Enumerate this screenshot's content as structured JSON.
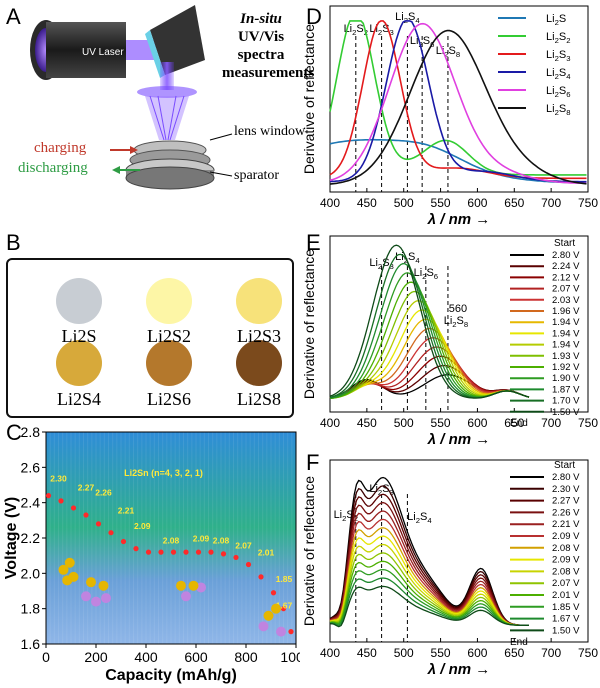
{
  "panels": {
    "a": "A",
    "b": "B",
    "c": "C",
    "d": "D",
    "e": "E",
    "f": "F"
  },
  "panel_a": {
    "laser_label": "UV Laser",
    "title_italic": "In-situ",
    "title_rest": " UV/Vis",
    "title_line2": "spectra",
    "title_line3": "measurements",
    "charging": "charging",
    "discharging": "discharging",
    "lens_window": "lens window",
    "separator": "sparator",
    "colors": {
      "charging": "#c0392b",
      "discharging": "#2e9c44"
    }
  },
  "panel_b": {
    "samples": [
      {
        "label": "Li2S",
        "color": "#c8cdd3"
      },
      {
        "label": "Li2S2",
        "color": "#fdf6a6"
      },
      {
        "label": "Li2S3",
        "color": "#f7e27a"
      },
      {
        "label": "Li2S4",
        "color": "#d7a93a"
      },
      {
        "label": "Li2S6",
        "color": "#b4782c"
      },
      {
        "label": "Li2S8",
        "color": "#7b4a1c"
      }
    ]
  },
  "chart_data": [
    {
      "panel": "C",
      "type": "scatter",
      "xlabel": "Capacity (mAh/g)",
      "ylabel": "Voltage (V)",
      "xlim": [
        0,
        1000
      ],
      "ylim": [
        1.6,
        2.8
      ],
      "xticks": [
        0,
        200,
        400,
        600,
        800,
        1000
      ],
      "yticks": [
        1.6,
        1.8,
        2.0,
        2.2,
        2.4,
        2.6,
        2.8
      ],
      "annotation": "Li2Sn (n=4, 3, 2, 1)",
      "series": [
        {
          "x": [
            10,
            60,
            110,
            160,
            210,
            260,
            310,
            360,
            410,
            460,
            510,
            560,
            610,
            660,
            710,
            760,
            810,
            860,
            910,
            950,
            980
          ],
          "y": [
            2.44,
            2.41,
            2.37,
            2.33,
            2.28,
            2.23,
            2.18,
            2.14,
            2.12,
            2.12,
            2.12,
            2.12,
            2.12,
            2.12,
            2.11,
            2.09,
            2.05,
            1.98,
            1.89,
            1.8,
            1.67
          ]
        }
      ],
      "point_labels": [
        {
          "text": "2.30",
          "x": 50,
          "y": 2.52
        },
        {
          "text": "2.27",
          "x": 160,
          "y": 2.47
        },
        {
          "text": "2.26",
          "x": 230,
          "y": 2.44
        },
        {
          "text": "2.21",
          "x": 320,
          "y": 2.34
        },
        {
          "text": "2.09",
          "x": 385,
          "y": 2.25
        },
        {
          "text": "2.08",
          "x": 500,
          "y": 2.17
        },
        {
          "text": "2.09",
          "x": 620,
          "y": 2.18
        },
        {
          "text": "2.08",
          "x": 700,
          "y": 2.17
        },
        {
          "text": "2.07",
          "x": 790,
          "y": 2.14
        },
        {
          "text": "2.01",
          "x": 880,
          "y": 2.1
        },
        {
          "text": "1.85",
          "x": 960,
          "y": 1.95
        },
        {
          "text": "1.67",
          "x": 1000,
          "y": 1.8
        }
      ]
    },
    {
      "panel": "D",
      "type": "line",
      "xlabel": "λ / nm →",
      "ylabel": "Derivative of reflectance",
      "xlim": [
        400,
        750
      ],
      "xticks": [
        400,
        450,
        500,
        550,
        600,
        650,
        700,
        750
      ],
      "markers": [
        {
          "x": 435,
          "label": "Li2S2"
        },
        {
          "x": 470,
          "label": "Li2S3"
        },
        {
          "x": 505,
          "label": "Li2S4"
        },
        {
          "x": 525,
          "label": "Li2S6"
        },
        {
          "x": 560,
          "label": "Li2S8"
        }
      ],
      "series": [
        {
          "name": "Li2S",
          "color": "#1f78b4",
          "peak": 440,
          "width": 160,
          "amp": 0.25,
          "base": 0.05
        },
        {
          "name": "Li2S2",
          "color": "#33cc33",
          "peak": 435,
          "width": 40,
          "amp": 0.95,
          "base": 0.1
        },
        {
          "name": "Li2S3",
          "color": "#e31a1c",
          "peak": 470,
          "width": 40,
          "amp": 0.92,
          "base": 0.08
        },
        {
          "name": "Li2S4",
          "color": "#1a1aa6",
          "peak": 505,
          "width": 45,
          "amp": 0.95,
          "base": 0.06
        },
        {
          "name": "Li2S6",
          "color": "#e040e0",
          "peak": 525,
          "width": 70,
          "amp": 0.93,
          "base": 0.05
        },
        {
          "name": "Li2S8",
          "color": "#111111",
          "peak": 560,
          "width": 80,
          "amp": 0.9,
          "base": 0.04
        }
      ]
    },
    {
      "panel": "E",
      "type": "line",
      "xlabel": "λ / nm →",
      "ylabel": "Derivative of reflectance",
      "xlim": [
        400,
        750
      ],
      "xticks": [
        400,
        450,
        500,
        550,
        600,
        650,
        700,
        750
      ],
      "markers": [
        {
          "x": 470,
          "label": "Li2S3"
        },
        {
          "x": 505,
          "label": "Li2S4"
        },
        {
          "x": 530,
          "label": "Li2S6"
        },
        {
          "x": 560,
          "label": "Li2S8"
        }
      ],
      "annotation": "560",
      "legend_start": "Start",
      "legend_end": "End",
      "series": [
        {
          "name": "2.80 V",
          "color": "#000000"
        },
        {
          "name": "2.24 V",
          "color": "#5a0000"
        },
        {
          "name": "2.12 V",
          "color": "#8b0000"
        },
        {
          "name": "2.07 V",
          "color": "#b22222"
        },
        {
          "name": "2.03 V",
          "color": "#cc3333"
        },
        {
          "name": "1.96 V",
          "color": "#d2691e"
        },
        {
          "name": "1.94 V",
          "color": "#e6b800"
        },
        {
          "name": "1.94 V",
          "color": "#e6e600"
        },
        {
          "name": "1.94 V",
          "color": "#b5cc00"
        },
        {
          "name": "1.93 V",
          "color": "#7fbf00"
        },
        {
          "name": "1.92 V",
          "color": "#4caf00"
        },
        {
          "name": "1.90 V",
          "color": "#2e9c22"
        },
        {
          "name": "1.87 V",
          "color": "#1e8a2e"
        },
        {
          "name": "1.70 V",
          "color": "#176e24"
        },
        {
          "name": "1.50 V",
          "color": "#0e4a18"
        }
      ]
    },
    {
      "panel": "F",
      "type": "line",
      "xlabel": "λ / nm →",
      "ylabel": "Derivative of reflectance",
      "xlim": [
        400,
        750
      ],
      "xticks": [
        400,
        450,
        500,
        550,
        600,
        650,
        700,
        750
      ],
      "markers": [
        {
          "x": 435,
          "label": "Li2S2"
        },
        {
          "x": 470,
          "label": "Li2S3"
        },
        {
          "x": 505,
          "label": "Li2S4"
        }
      ],
      "legend_start": "Start",
      "legend_end": "End",
      "series": [
        {
          "name": "2.80 V",
          "color": "#000000"
        },
        {
          "name": "2.30 V",
          "color": "#3a0000"
        },
        {
          "name": "2.27 V",
          "color": "#5a0000"
        },
        {
          "name": "2.26 V",
          "color": "#7a1010"
        },
        {
          "name": "2.21 V",
          "color": "#9a2020"
        },
        {
          "name": "2.09 V",
          "color": "#b83030"
        },
        {
          "name": "2.08 V",
          "color": "#d2a000"
        },
        {
          "name": "2.09 V",
          "color": "#e6e600"
        },
        {
          "name": "2.08 V",
          "color": "#c8d400"
        },
        {
          "name": "2.07 V",
          "color": "#8fc400"
        },
        {
          "name": "2.01 V",
          "color": "#4caf00"
        },
        {
          "name": "1.85 V",
          "color": "#2e9c22"
        },
        {
          "name": "1.67 V",
          "color": "#1e8a2e"
        },
        {
          "name": "1.50 V",
          "color": "#0e4a18"
        }
      ]
    }
  ]
}
